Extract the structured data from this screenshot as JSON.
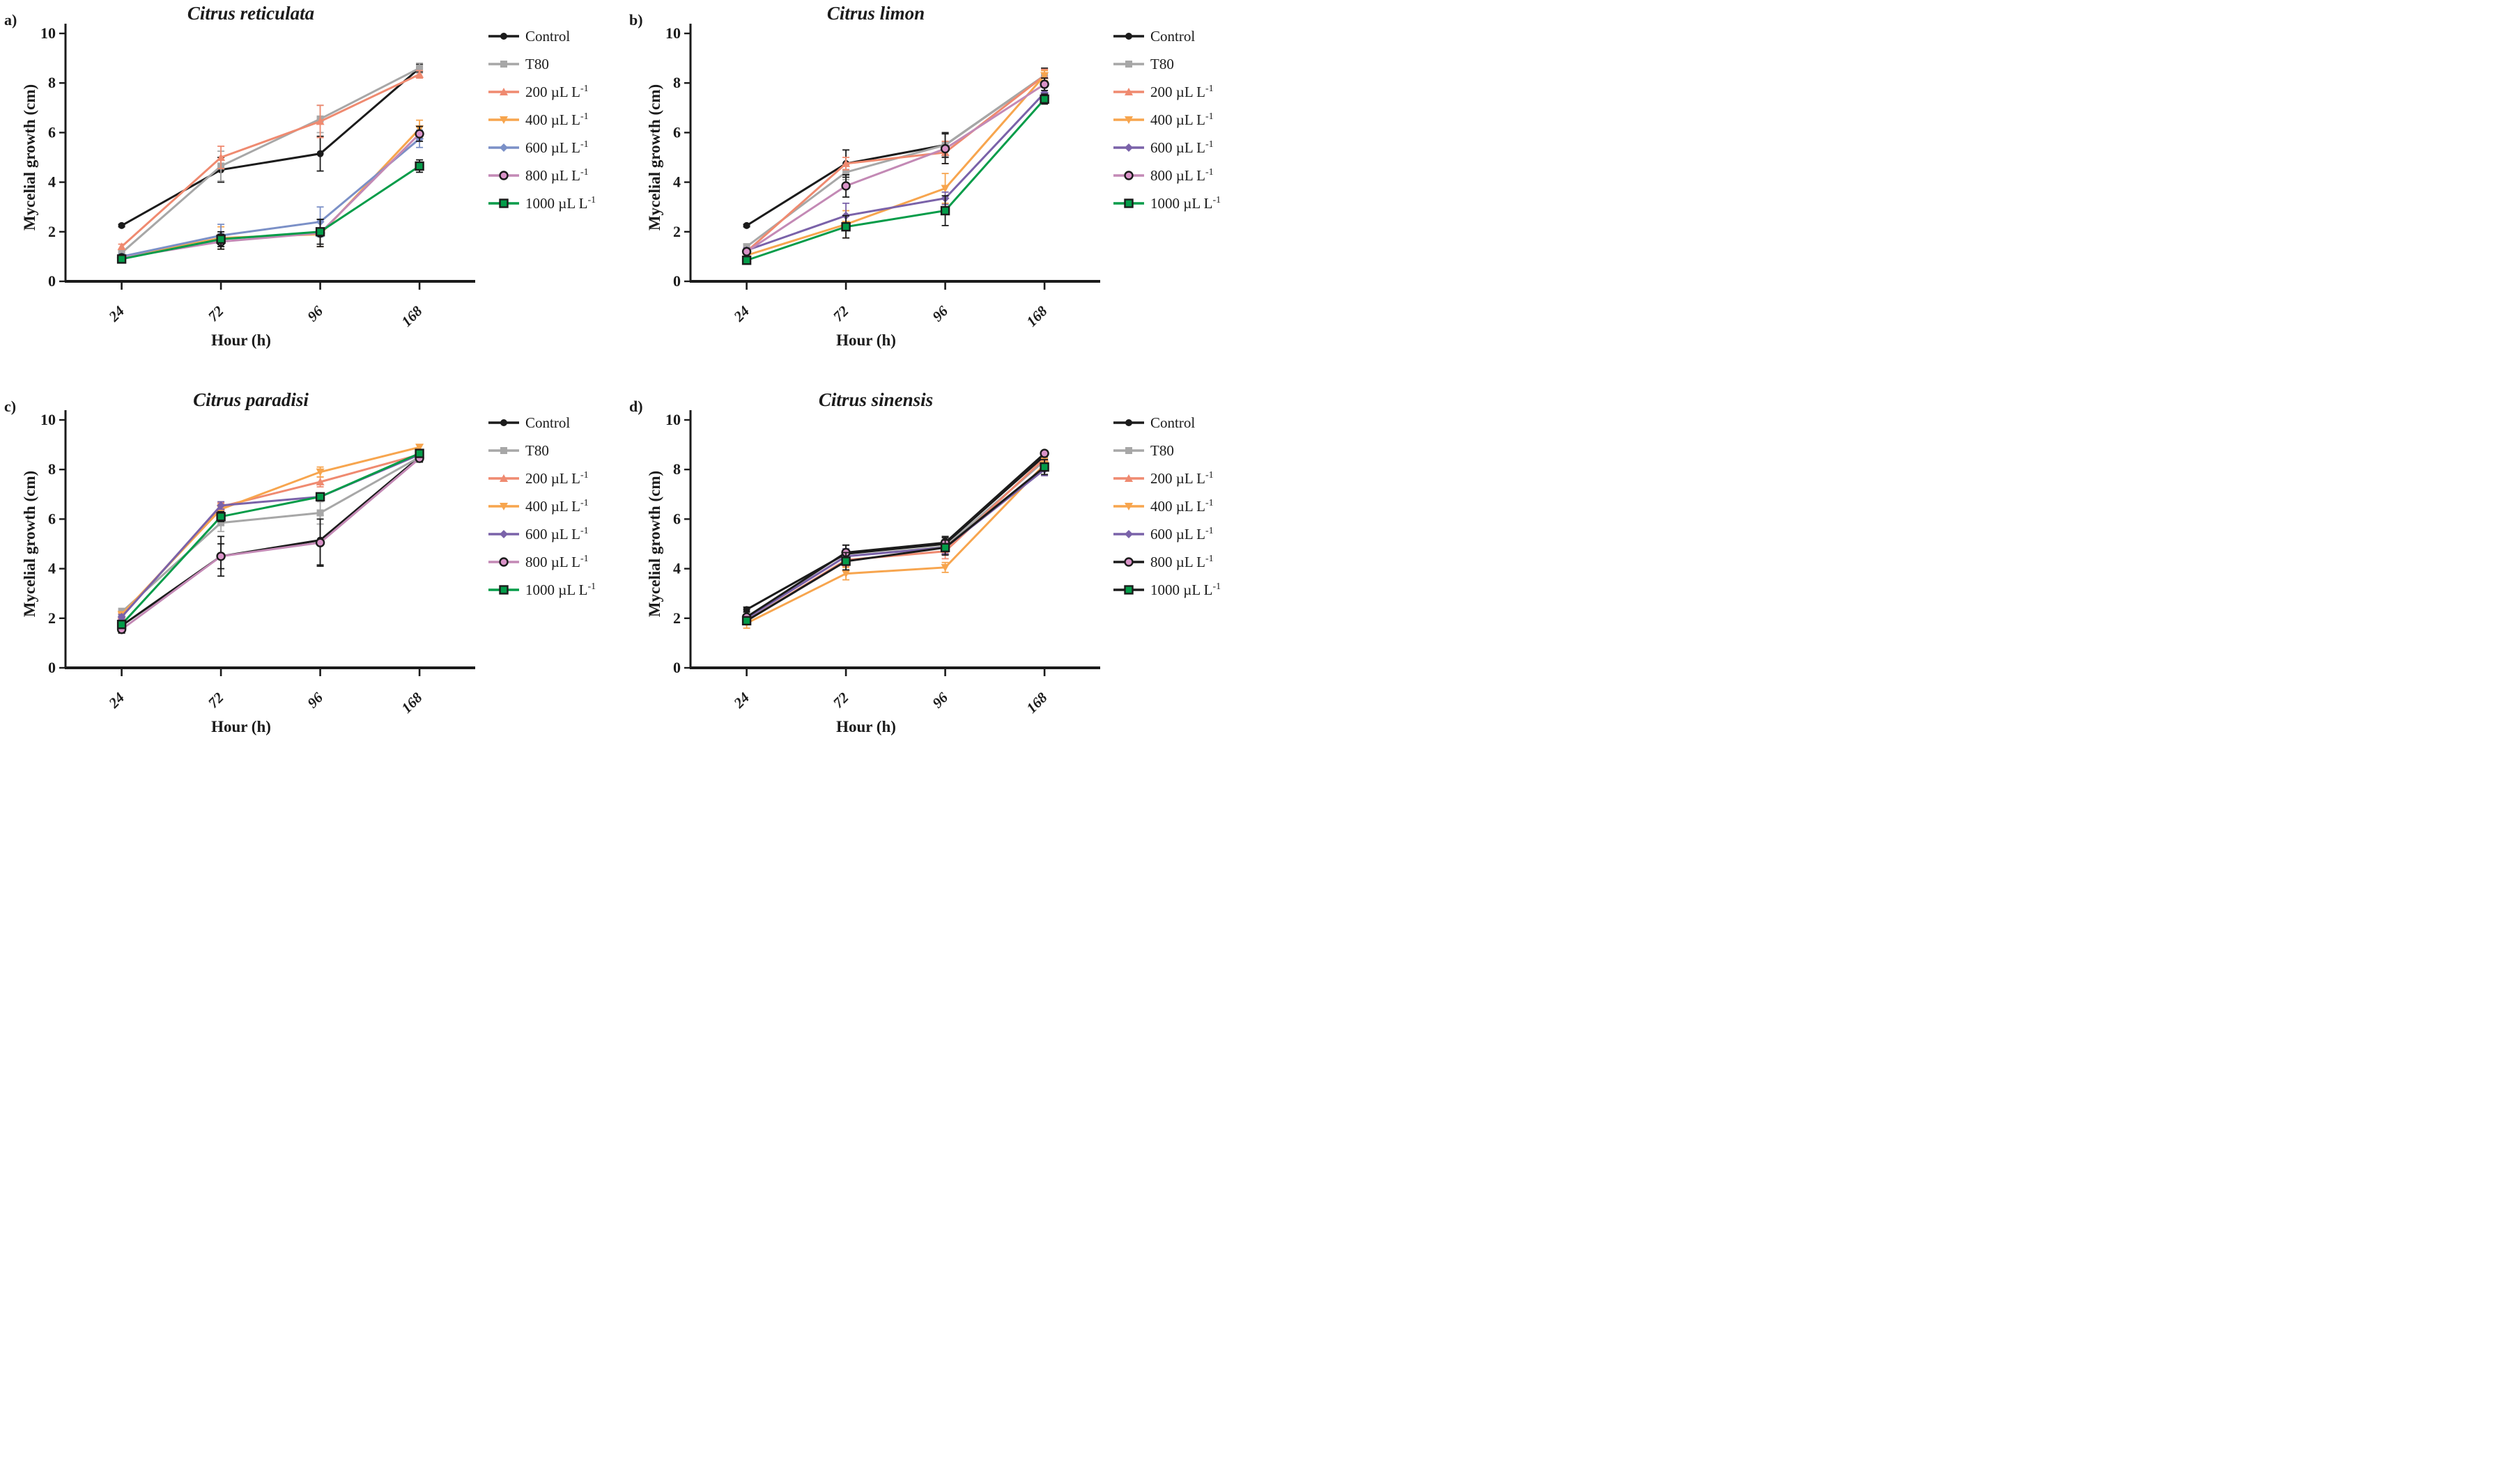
{
  "figure_caption": "",
  "chart_data": [
    {
      "type": "line",
      "panel_label": "a)",
      "title": "Citrus reticulata",
      "xlabel": "Hour (h)",
      "ylabel": "Mycelial growth (cm)",
      "x_categories": [
        "24",
        "72",
        "96",
        "168"
      ],
      "y_ticks": [
        0,
        2,
        4,
        6,
        8,
        10
      ],
      "ylim": [
        0,
        10
      ],
      "grid": false,
      "legend_position": "right",
      "series": [
        {
          "name": "Control",
          "marker": "circle",
          "color": "#1b1b1b",
          "line": "#1b1b1b",
          "values": [
            2.25,
            4.5,
            5.15,
            8.6
          ],
          "err": [
            0.05,
            0.5,
            0.7,
            0.15
          ]
        },
        {
          "name": "T80",
          "marker": "square",
          "color": "#a7a7a7",
          "line": "#a7a7a7",
          "values": [
            1.15,
            4.65,
            6.55,
            8.6
          ],
          "err": [
            0.1,
            0.6,
            0.55,
            0.2
          ]
        },
        {
          "name": "200 µL L⁻¹",
          "marker": "triangle-up",
          "color": "#ef8a70",
          "line": "#ef8a70",
          "values": [
            1.4,
            5.0,
            6.45,
            8.35
          ],
          "err": [
            0.1,
            0.45,
            0.65,
            0.15
          ]
        },
        {
          "name": "400 µL L⁻¹",
          "marker": "triangle-down",
          "color": "#f7a54e",
          "line": "#f7a54e",
          "values": [
            0.95,
            1.75,
            1.9,
            6.15
          ],
          "err": [
            0.1,
            0.45,
            0.5,
            0.35
          ]
        },
        {
          "name": "600 µL L⁻¹",
          "marker": "diamond",
          "color": "#7b90c7",
          "line": "#7b90c7",
          "values": [
            1.0,
            1.85,
            2.4,
            5.75
          ],
          "err": [
            0.1,
            0.45,
            0.6,
            0.35
          ]
        },
        {
          "name": "800 µL L⁻¹",
          "marker": "open-circle",
          "color": "#d993c8",
          "line": "#c389b5",
          "values": [
            0.95,
            1.6,
            1.95,
            5.95
          ],
          "err": [
            0.1,
            0.3,
            0.55,
            0.3
          ]
        },
        {
          "name": "1000 µL L⁻¹",
          "marker": "square-outline",
          "color": "#049c49",
          "line": "#049c49",
          "values": [
            0.9,
            1.7,
            2.0,
            4.65
          ],
          "err": [
            0.1,
            0.3,
            0.5,
            0.25
          ]
        }
      ]
    },
    {
      "type": "line",
      "panel_label": "b)",
      "title": "Citrus limon",
      "xlabel": "Hour (h)",
      "ylabel": "Mycelial growth (cm)",
      "x_categories": [
        "24",
        "72",
        "96",
        "168"
      ],
      "y_ticks": [
        0,
        2,
        4,
        6,
        8,
        10
      ],
      "ylim": [
        0,
        10
      ],
      "grid": false,
      "legend_position": "right",
      "series": [
        {
          "name": "Control",
          "marker": "circle",
          "color": "#1b1b1b",
          "line": "#1b1b1b",
          "values": [
            2.25,
            4.75,
            5.5,
            8.3
          ],
          "err": [
            0.05,
            0.55,
            0.5,
            0.3
          ]
        },
        {
          "name": "T80",
          "marker": "square",
          "color": "#a7a7a7",
          "line": "#a7a7a7",
          "values": [
            1.4,
            4.4,
            5.5,
            8.3
          ],
          "err": [
            0.1,
            0.3,
            0.45,
            0.25
          ]
        },
        {
          "name": "200 µL L⁻¹",
          "marker": "triangle-up",
          "color": "#ef8a70",
          "line": "#ef8a70",
          "values": [
            1.2,
            4.75,
            5.2,
            8.3
          ],
          "err": [
            0.1,
            0.25,
            0.45,
            0.25
          ]
        },
        {
          "name": "400 µL L⁻¹",
          "marker": "triangle-down",
          "color": "#f7a54e",
          "line": "#f7a54e",
          "values": [
            1.05,
            2.3,
            3.75,
            8.3
          ],
          "err": [
            0.1,
            0.55,
            0.6,
            0.2
          ]
        },
        {
          "name": "600 µL L⁻¹",
          "marker": "diamond",
          "color": "#7a62a9",
          "line": "#7a62a9",
          "values": [
            1.25,
            2.65,
            3.35,
            7.6
          ],
          "err": [
            0.1,
            0.5,
            0.25,
            0.3
          ]
        },
        {
          "name": "800 µL L⁻¹",
          "marker": "open-circle",
          "color": "#d993c8",
          "line": "#c389b5",
          "values": [
            1.2,
            3.85,
            5.35,
            7.95
          ],
          "err": [
            0.1,
            0.45,
            0.6,
            0.25
          ]
        },
        {
          "name": "1000 µL L⁻¹",
          "marker": "square-outline",
          "color": "#049c49",
          "line": "#049c49",
          "values": [
            0.85,
            2.2,
            2.85,
            7.35
          ],
          "err": [
            0.1,
            0.45,
            0.6,
            0.2
          ]
        }
      ]
    },
    {
      "type": "line",
      "panel_label": "c)",
      "title": "Citrus paradisi",
      "xlabel": "Hour (h)",
      "ylabel": "Mycelial growth (cm)",
      "x_categories": [
        "24",
        "72",
        "96",
        "168"
      ],
      "y_ticks": [
        0,
        2,
        4,
        6,
        8,
        10
      ],
      "ylim": [
        0,
        10
      ],
      "grid": false,
      "legend_position": "right",
      "series": [
        {
          "name": "Control",
          "marker": "circle",
          "color": "#1b1b1b",
          "line": "#1b1b1b",
          "values": [
            1.7,
            4.5,
            5.15,
            8.5
          ],
          "err": [
            0.15,
            0.8,
            1.0,
            0.15
          ]
        },
        {
          "name": "T80",
          "marker": "square",
          "color": "#a7a7a7",
          "line": "#a7a7a7",
          "values": [
            2.25,
            5.85,
            6.25,
            8.5
          ],
          "err": [
            0.15,
            0.35,
            0.45,
            0.2
          ]
        },
        {
          "name": "200 µL L⁻¹",
          "marker": "triangle-up",
          "color": "#ef8a70",
          "line": "#ef8a70",
          "values": [
            2.1,
            6.5,
            7.5,
            8.6
          ],
          "err": [
            0.1,
            0.15,
            0.2,
            0.2
          ]
        },
        {
          "name": "400 µL L⁻¹",
          "marker": "triangle-down",
          "color": "#f7a54e",
          "line": "#f7a54e",
          "values": [
            2.15,
            6.4,
            7.9,
            8.9
          ],
          "err": [
            0.1,
            0.2,
            0.2,
            0.1
          ]
        },
        {
          "name": "600 µL L⁻¹",
          "marker": "diamond",
          "color": "#7a62a9",
          "line": "#7a62a9",
          "values": [
            2.05,
            6.55,
            6.9,
            8.6
          ],
          "err": [
            0.1,
            0.15,
            0.15,
            0.15
          ]
        },
        {
          "name": "800 µL L⁻¹",
          "marker": "open-circle",
          "color": "#d993c8",
          "line": "#c389b5",
          "values": [
            1.55,
            4.5,
            5.05,
            8.45
          ],
          "err": [
            0.15,
            0.5,
            0.95,
            0.15
          ]
        },
        {
          "name": "1000 µL L⁻¹",
          "marker": "square-outline",
          "color": "#049c49",
          "line": "#049c49",
          "values": [
            1.75,
            6.1,
            6.9,
            8.65
          ],
          "err": [
            0.1,
            0.2,
            0.15,
            0.15
          ]
        }
      ]
    },
    {
      "type": "line",
      "panel_label": "d)",
      "title": "Citrus sinensis",
      "xlabel": "Hour (h)",
      "ylabel": "Mycelial growth (cm)",
      "x_categories": [
        "24",
        "72",
        "96",
        "168"
      ],
      "y_ticks": [
        0,
        2,
        4,
        6,
        8,
        10
      ],
      "ylim": [
        0,
        10
      ],
      "grid": false,
      "legend_position": "right",
      "series": [
        {
          "name": "Control",
          "marker": "circle",
          "color": "#1b1b1b",
          "line": "#1b1b1b",
          "values": [
            2.35,
            4.6,
            5.0,
            8.55
          ],
          "err": [
            0.1,
            0.35,
            0.25,
            0.15
          ]
        },
        {
          "name": "T80",
          "marker": "square",
          "color": "#a7a7a7",
          "line": "#a7a7a7",
          "values": [
            2.0,
            4.5,
            4.9,
            8.35
          ],
          "err": [
            0.1,
            0.3,
            0.25,
            0.2
          ]
        },
        {
          "name": "200 µL L⁻¹",
          "marker": "triangle-up",
          "color": "#ef8a70",
          "line": "#ef8a70",
          "values": [
            1.9,
            4.35,
            4.7,
            8.45
          ],
          "err": [
            0.15,
            0.25,
            0.3,
            0.2
          ]
        },
        {
          "name": "400 µL L⁻¹",
          "marker": "triangle-down",
          "color": "#f7a54e",
          "line": "#f7a54e",
          "values": [
            1.8,
            3.8,
            4.05,
            8.2
          ],
          "err": [
            0.2,
            0.25,
            0.2,
            0.25
          ]
        },
        {
          "name": "600 µL L⁻¹",
          "marker": "diamond",
          "color": "#7a62a9",
          "line": "#7a62a9",
          "values": [
            2.0,
            4.5,
            4.85,
            8.0
          ],
          "err": [
            0.1,
            0.3,
            0.25,
            0.25
          ]
        },
        {
          "name": "800 µL L⁻¹",
          "marker": "open-circle",
          "color": "#d993c8",
          "line": "#1b1b1b",
          "values": [
            2.05,
            4.65,
            5.05,
            8.65
          ],
          "err": [
            0.1,
            0.3,
            0.25,
            0.1
          ]
        },
        {
          "name": "1000 µL L⁻¹",
          "marker": "square-outline",
          "color": "#049c49",
          "line": "#1b1b1b",
          "values": [
            1.9,
            4.3,
            4.85,
            8.1
          ],
          "err": [
            0.1,
            0.35,
            0.3,
            0.3
          ]
        }
      ]
    }
  ]
}
